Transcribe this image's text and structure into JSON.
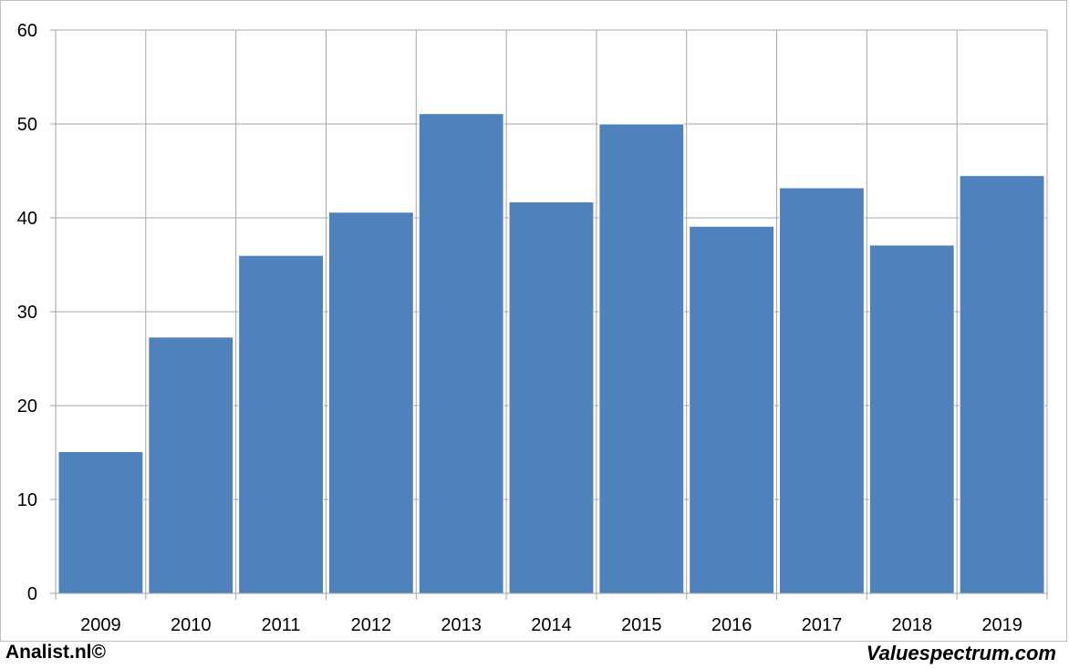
{
  "chart_data": {
    "type": "bar",
    "categories": [
      "2009",
      "2010",
      "2011",
      "2012",
      "2013",
      "2014",
      "2015",
      "2016",
      "2017",
      "2018",
      "2019"
    ],
    "values": [
      15.1,
      27.3,
      36.0,
      40.6,
      51.1,
      41.7,
      50.0,
      39.1,
      43.2,
      37.1,
      44.5
    ],
    "ylim": [
      0,
      60
    ],
    "yticks": [
      "0",
      "10",
      "20",
      "30",
      "40",
      "50",
      "60"
    ],
    "grid": true,
    "bar_color": "#4f81bd"
  },
  "footer": {
    "left": "Analist.nl©",
    "right": "Valuespectrum.com"
  }
}
